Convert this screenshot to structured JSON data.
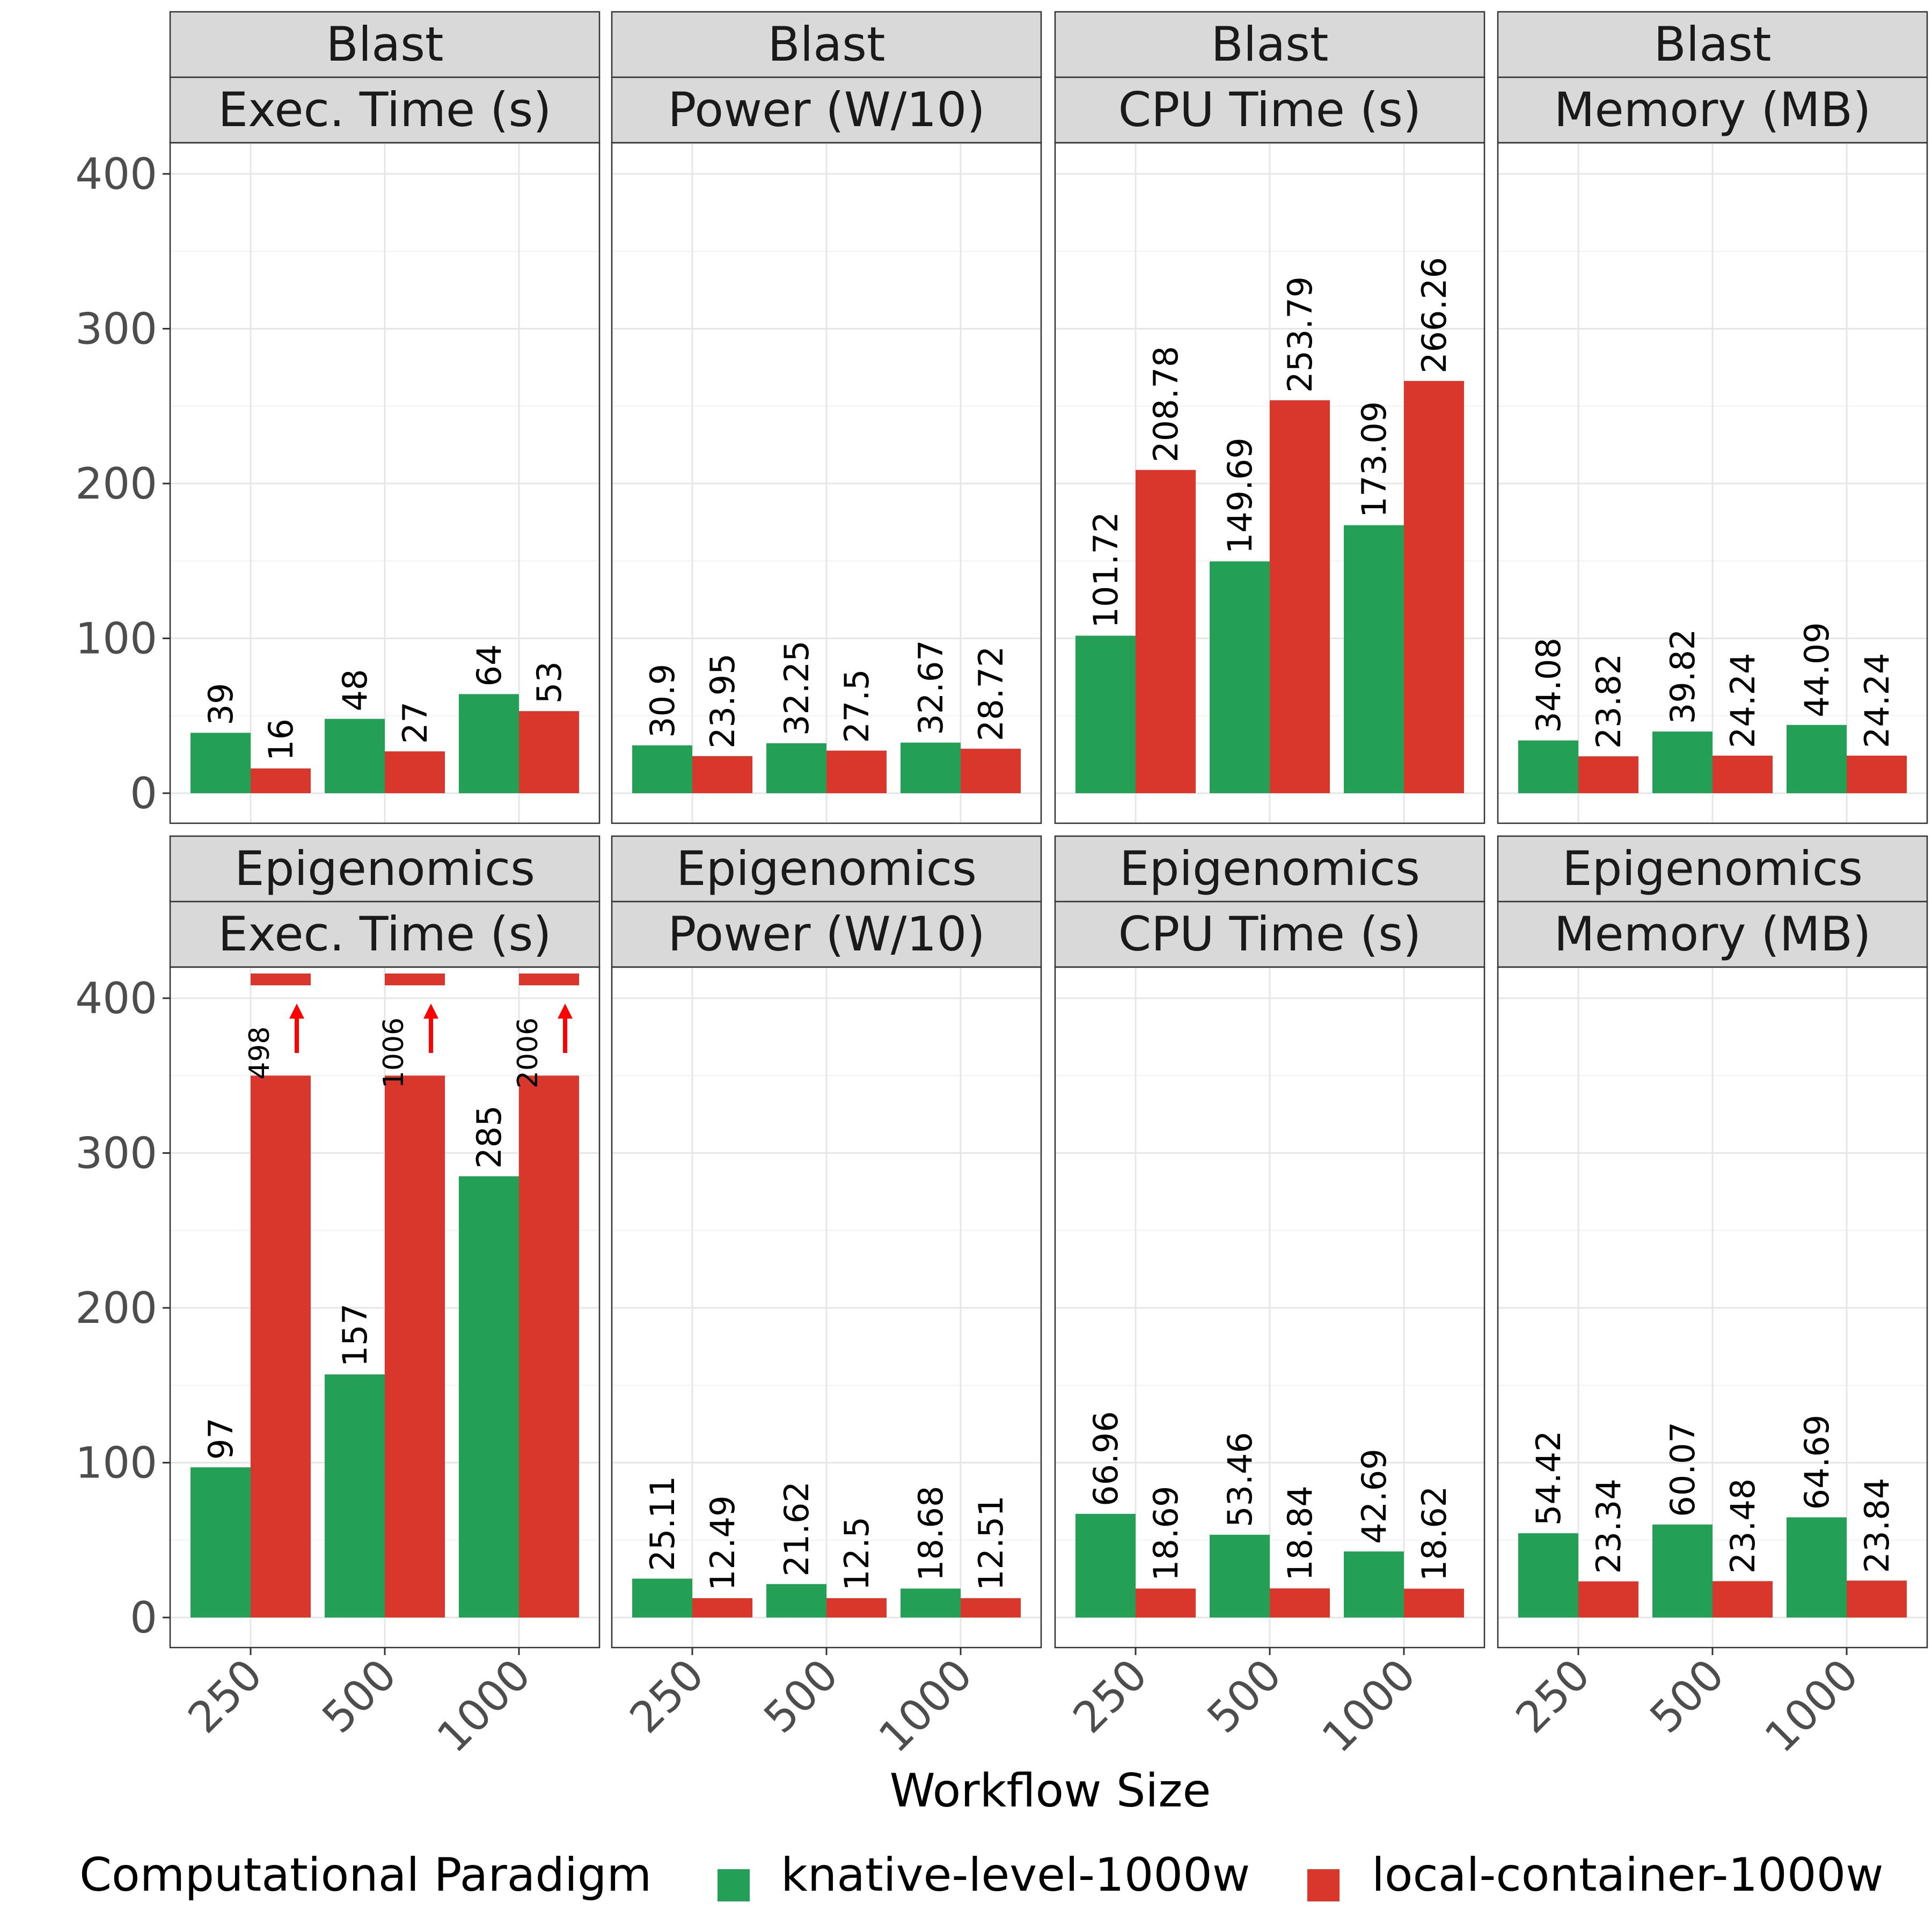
{
  "chart_data": {
    "type": "bar",
    "layout": "facet-grid",
    "xlabel": "Workflow Size",
    "ylabel": "",
    "ylim": [
      0,
      420
    ],
    "yticks": [
      0,
      100,
      200,
      300,
      400
    ],
    "categories": [
      "250",
      "500",
      "1000"
    ],
    "legend": {
      "title": "Computational Paradigm",
      "position": "bottom",
      "entries": [
        {
          "name": "knative-level-1000w",
          "color": "#23a055"
        },
        {
          "name": "local-container-1000w",
          "color": "#d9372b"
        }
      ]
    },
    "grid": true,
    "panels": [
      {
        "workflow": "Blast",
        "metric": "Exec. Time (s)",
        "series": [
          {
            "name": "knative-level-1000w",
            "values": [
              39,
              48,
              64
            ],
            "labels": [
              "39",
              "48",
              "64"
            ]
          },
          {
            "name": "local-container-1000w",
            "values": [
              16,
              27,
              53
            ],
            "labels": [
              "16",
              "27",
              "53"
            ]
          }
        ]
      },
      {
        "workflow": "Blast",
        "metric": "Power (W/10)",
        "series": [
          {
            "name": "knative-level-1000w",
            "values": [
              30.9,
              32.25,
              32.67
            ],
            "labels": [
              "30.9",
              "32.25",
              "32.67"
            ]
          },
          {
            "name": "local-container-1000w",
            "values": [
              23.95,
              27.5,
              28.72
            ],
            "labels": [
              "23.95",
              "27.5",
              "28.72"
            ]
          }
        ]
      },
      {
        "workflow": "Blast",
        "metric": "CPU Time (s)",
        "series": [
          {
            "name": "knative-level-1000w",
            "values": [
              101.72,
              149.69,
              173.09
            ],
            "labels": [
              "101.72",
              "149.69",
              "173.09"
            ]
          },
          {
            "name": "local-container-1000w",
            "values": [
              208.78,
              253.79,
              266.26
            ],
            "labels": [
              "208.78",
              "253.79",
              "266.26"
            ]
          }
        ]
      },
      {
        "workflow": "Blast",
        "metric": "Memory (MB)",
        "series": [
          {
            "name": "knative-level-1000w",
            "values": [
              34.08,
              39.82,
              44.09
            ],
            "labels": [
              "34.08",
              "39.82",
              "44.09"
            ]
          },
          {
            "name": "local-container-1000w",
            "values": [
              23.82,
              24.24,
              24.24
            ],
            "labels": [
              "23.82",
              "24.24",
              "24.24"
            ]
          }
        ]
      },
      {
        "workflow": "Epigenomics",
        "metric": "Exec. Time (s)",
        "series": [
          {
            "name": "knative-level-1000w",
            "values": [
              97,
              157,
              285
            ],
            "labels": [
              "97",
              "157",
              "285"
            ]
          },
          {
            "name": "local-container-1000w",
            "values": [
              498,
              1006,
              2006
            ],
            "labels": [
              "498",
              "1006",
              "2006"
            ],
            "truncated": true
          }
        ]
      },
      {
        "workflow": "Epigenomics",
        "metric": "Power (W/10)",
        "series": [
          {
            "name": "knative-level-1000w",
            "values": [
              25.11,
              21.62,
              18.68
            ],
            "labels": [
              "25.11",
              "21.62",
              "18.68"
            ]
          },
          {
            "name": "local-container-1000w",
            "values": [
              12.49,
              12.5,
              12.51
            ],
            "labels": [
              "12.49",
              "12.5",
              "12.51"
            ]
          }
        ]
      },
      {
        "workflow": "Epigenomics",
        "metric": "CPU Time (s)",
        "series": [
          {
            "name": "knative-level-1000w",
            "values": [
              66.96,
              53.46,
              42.69
            ],
            "labels": [
              "66.96",
              "53.46",
              "42.69"
            ]
          },
          {
            "name": "local-container-1000w",
            "values": [
              18.69,
              18.84,
              18.62
            ],
            "labels": [
              "18.69",
              "18.84",
              "18.62"
            ]
          }
        ]
      },
      {
        "workflow": "Epigenomics",
        "metric": "Memory (MB)",
        "series": [
          {
            "name": "knative-level-1000w",
            "values": [
              54.42,
              60.07,
              64.69
            ],
            "labels": [
              "54.42",
              "60.07",
              "64.69"
            ]
          },
          {
            "name": "local-container-1000w",
            "values": [
              23.34,
              23.48,
              23.84
            ],
            "labels": [
              "23.34",
              "23.48",
              "23.84"
            ]
          }
        ]
      }
    ]
  }
}
